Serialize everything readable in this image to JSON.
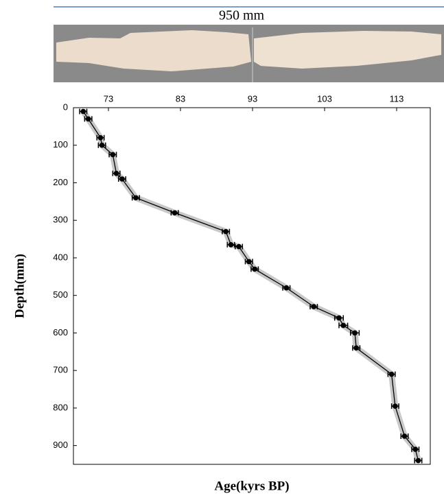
{
  "photo": {
    "label": "950 mm"
  },
  "chart_data": {
    "type": "line",
    "x_label": "Age(kyrs BP)",
    "y_label": "Depth(mm)",
    "x": [
      69.5,
      70.2,
      71.9,
      72.1,
      73.6,
      74.1,
      74.9,
      76.8,
      82.2,
      89.3,
      90.0,
      91.1,
      92.5,
      93.3,
      97.7,
      101.5,
      105.0,
      105.6,
      107.2,
      107.4,
      112.3,
      112.8,
      114.1,
      115.6,
      116.0
    ],
    "xerr": [
      0.5,
      0.5,
      0.5,
      0.5,
      0.5,
      0.5,
      0.5,
      0.5,
      0.5,
      0.5,
      0.5,
      0.5,
      0.5,
      0.5,
      0.5,
      0.5,
      0.6,
      0.6,
      0.6,
      0.5,
      0.5,
      0.5,
      0.5,
      0.5,
      0.5
    ],
    "series": [
      {
        "color": "#000000",
        "values": [
          10,
          30,
          80,
          100,
          125,
          175,
          190,
          240,
          280,
          330,
          365,
          370,
          410,
          430,
          480,
          530,
          560,
          580,
          600,
          640,
          710,
          795,
          875,
          910,
          940
        ]
      }
    ],
    "xlim": [
      68.14,
      117.67
    ],
    "ylim": [
      0,
      950
    ],
    "xticks": [
      73,
      83,
      93,
      103,
      113
    ],
    "yticks": [
      0,
      100,
      200,
      300,
      400,
      500,
      600,
      700,
      800,
      900
    ],
    "y_inverted": true,
    "x_axis_position": "top",
    "band_color": "#9a9a9a"
  }
}
